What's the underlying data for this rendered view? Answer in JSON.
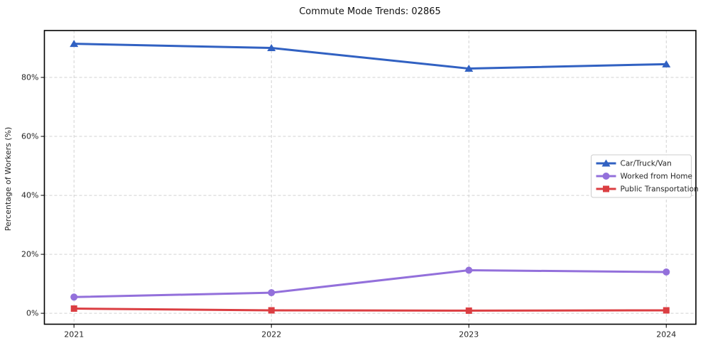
{
  "chart_data": {
    "type": "line",
    "title": "Commute Mode Trends: 02865",
    "xlabel": "",
    "ylabel": "Percentage of Workers (%)",
    "x": [
      2021,
      2022,
      2023,
      2024
    ],
    "x_tick_labels": [
      "2021",
      "2022",
      "2023",
      "2024"
    ],
    "y_ticks": [
      0,
      20,
      40,
      60,
      80
    ],
    "y_tick_labels": [
      "0%",
      "20%",
      "40%",
      "60%",
      "80%"
    ],
    "xlim": [
      2020.85,
      2024.15
    ],
    "ylim": [
      -3.7,
      95.9
    ],
    "grid": true,
    "grid_style": "dashed",
    "background_color": "#ffffff",
    "legend_position": "center right",
    "series": [
      {
        "name": "Car/Truck/Van",
        "marker": "triangle",
        "color": "#3161C2",
        "values": [
          91.4,
          90.0,
          83.0,
          84.5
        ]
      },
      {
        "name": "Worked from Home",
        "marker": "circle",
        "color": "#9370DB",
        "values": [
          5.5,
          7.0,
          14.6,
          14.0
        ]
      },
      {
        "name": "Public Transportation",
        "marker": "square",
        "color": "#DB3E42",
        "values": [
          1.6,
          1.0,
          0.9,
          1.0
        ]
      }
    ]
  }
}
